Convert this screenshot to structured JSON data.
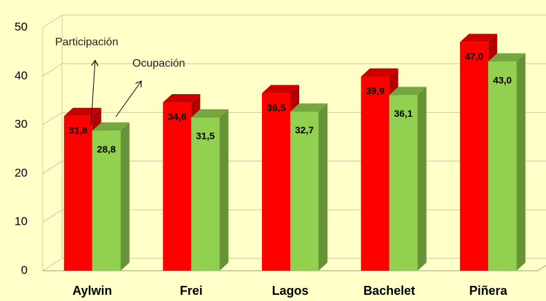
{
  "chart_data": {
    "type": "bar3d",
    "categories": [
      "Aylwin",
      "Frei",
      "Lagos",
      "Bachelet",
      "Piñera"
    ],
    "series": [
      {
        "name": "Participación",
        "color": "#ff0000",
        "values": [
          31.8,
          34.6,
          36.5,
          39.9,
          47.0
        ],
        "value_labels": [
          "31,8",
          "34,6",
          "36,5",
          "39,9",
          "47,0"
        ]
      },
      {
        "name": "Ocupación",
        "color": "#92d050",
        "values": [
          28.8,
          31.5,
          32.7,
          36.1,
          43.0
        ],
        "value_labels": [
          "28,8",
          "31,5",
          "32,7",
          "36,1",
          "43,0"
        ]
      }
    ],
    "ylim": [
      0,
      50
    ],
    "yticks": [
      0,
      10,
      20,
      30,
      40,
      50
    ],
    "grid": true
  }
}
